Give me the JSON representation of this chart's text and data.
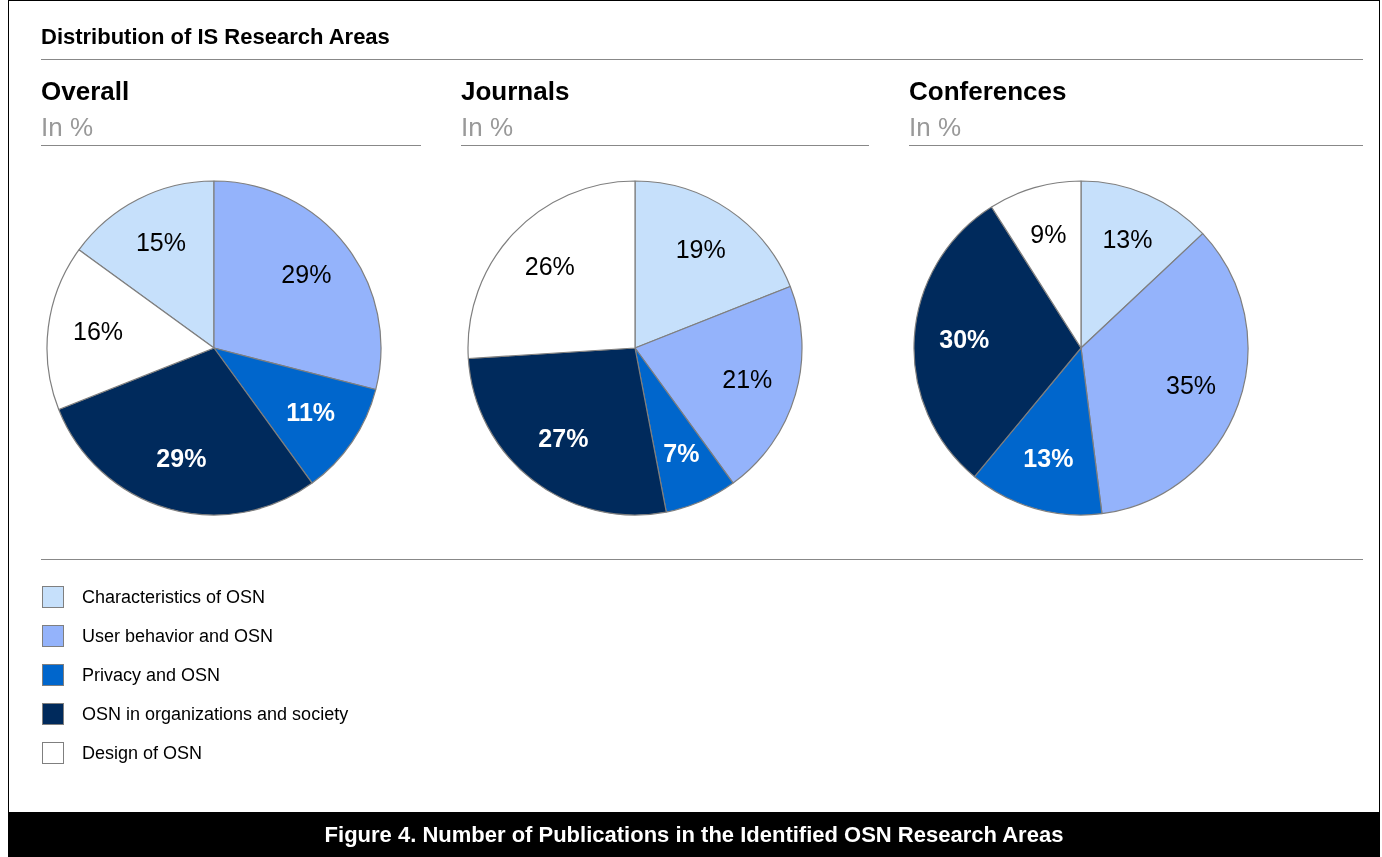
{
  "chart_data": [
    {
      "type": "pie",
      "title": "Overall",
      "subtitle": "In %",
      "legend": "bottom",
      "annotations": [
        "Distribution of IS Research Areas",
        "Figure 4. Number of Publications in the Identified OSN Research Areas"
      ],
      "categories": [
        "Characteristics of OSN",
        "User behavior and OSN",
        "Privacy and OSN",
        "OSN in organizations and society",
        "Design of OSN"
      ],
      "values": [
        15,
        29,
        11,
        29,
        16
      ],
      "value_labels": [
        "15%",
        "29%",
        "11%",
        "29%",
        "16%"
      ],
      "colors": [
        "#c6e0fb",
        "#94b3fb",
        "#0066cc",
        "#002a5c",
        "#ffffff"
      ]
    },
    {
      "type": "pie",
      "title": "Journals",
      "subtitle": "In %",
      "categories": [
        null,
        null,
        null,
        null,
        null
      ],
      "values": [
        19,
        21,
        7,
        27,
        26
      ],
      "value_labels": [
        "19%",
        "21%",
        "7%",
        "27%",
        "26%"
      ],
      "colors": [
        "#c6e0fb",
        "#94b3fb",
        "#0066cc",
        "#002a5c",
        "#ffffff"
      ]
    },
    {
      "type": "pie",
      "title": "Conferences",
      "subtitle": "In %",
      "categories": [
        null,
        null,
        null,
        null,
        null
      ],
      "values": [
        13,
        35,
        13,
        30,
        9
      ],
      "value_labels": [
        "13%",
        "35%",
        "13%",
        "30%",
        "9%"
      ],
      "colors": [
        "#c6e0fb",
        "#94b3fb",
        "#0066cc",
        "#002a5c",
        "#ffffff"
      ]
    }
  ]
}
